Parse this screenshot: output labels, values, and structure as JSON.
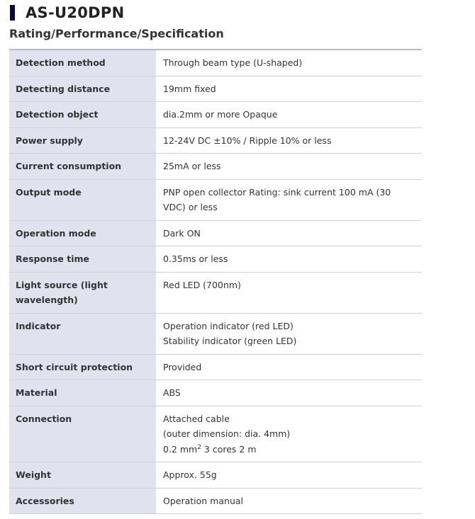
{
  "title": "AS-U20DPN",
  "subtitle": "Rating/Performance/Specification",
  "rows": [
    {
      "label": "Detection method",
      "value": "Through beam type (U-shaped)"
    },
    {
      "label": "Detecting distance",
      "value": "19mm fixed"
    },
    {
      "label": "Detection object",
      "value": "dia.2mm or more Opaque"
    },
    {
      "label": "Power supply",
      "value": "12-24V DC ±10% / Ripple 10% or less"
    },
    {
      "label": "Current consumption",
      "value": "25mA or less"
    },
    {
      "label": "Output mode",
      "value": "PNP open collector Rating: sink current 100 mA (30 VDC) or less"
    },
    {
      "label": "Operation mode",
      "value": "Dark ON"
    },
    {
      "label": "Response time",
      "value": "0.35ms or less"
    },
    {
      "label": "Light source (light wavelength)",
      "value": "Red LED (700nm)"
    },
    {
      "label": "Indicator",
      "line1": "Operation indicator (red LED)",
      "line2": "Stability indicator (green LED)"
    },
    {
      "label": "Short circuit protection",
      "value": "Provided"
    },
    {
      "label": "Material",
      "value": "ABS"
    },
    {
      "label": "Connection",
      "line1": "Attached cable",
      "line2": "(outer dimension: dia. 4mm)",
      "line3a": "0.2 mm",
      "line3sup": "2",
      "line3b": " 3 cores 2 m"
    },
    {
      "label": "Weight",
      "value": "Approx. 55g"
    },
    {
      "label": "Accessories",
      "value": "Operation manual"
    }
  ]
}
